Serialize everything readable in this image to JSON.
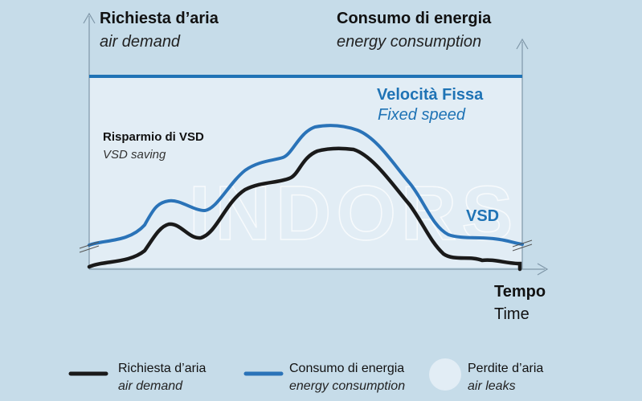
{
  "axes": {
    "y_left_title": "Richiesta d’aria",
    "y_left_subtitle": "air demand",
    "y_right_title": "Consumo di energia",
    "y_right_subtitle": "energy consumption",
    "x_title": "Tempo",
    "x_subtitle": "Time"
  },
  "annotations": {
    "fixed_speed_title": "Velocità Fissa",
    "fixed_speed_subtitle": "Fixed speed",
    "vsd_saving_title": "Risparmio di VSD",
    "vsd_saving_subtitle": "VSD saving",
    "vsd_label": "VSD"
  },
  "watermark": "INDORS",
  "legend": [
    {
      "title": "Richiesta d’aria",
      "subtitle": "air demand",
      "swatch": "line",
      "color": "#1a1a1a"
    },
    {
      "title": "Consumo di energia",
      "subtitle": "energy consumption",
      "swatch": "line",
      "color": "#2a73b8"
    },
    {
      "title": "Perdite d’aria",
      "subtitle": "air leaks",
      "swatch": "circle",
      "color": "#e2edf5"
    }
  ],
  "colors": {
    "background": "#c6dce9",
    "panel": "#e2edf5",
    "fixed_speed_line": "#1f73b5",
    "vsd_line": "#2a73b8",
    "demand_line": "#1a1a1a",
    "axis": "#7f97a8"
  }
}
